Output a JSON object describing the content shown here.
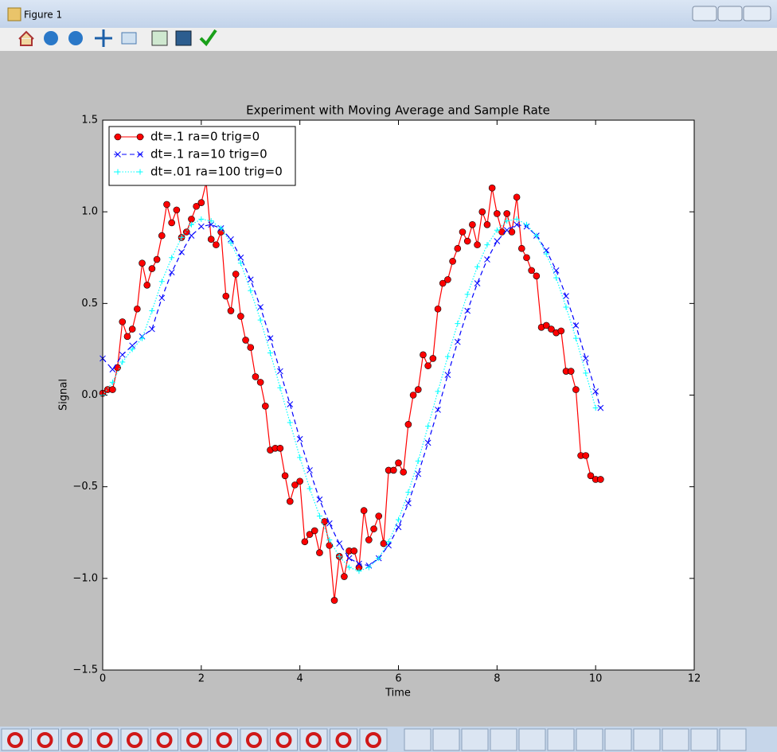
{
  "window": {
    "title": "Figure 1"
  },
  "chart_data": {
    "type": "line",
    "title": "Experiment with Moving Average and Sample Rate",
    "xlabel": "Time",
    "ylabel": "Signal",
    "xlim": [
      0,
      12
    ],
    "ylim": [
      -1.5,
      1.5
    ],
    "xticks": [
      0,
      2,
      4,
      6,
      8,
      10,
      12
    ],
    "yticks": [
      {
        "value": -1.5,
        "label": "−1.5"
      },
      {
        "value": -1,
        "label": "−1.0"
      },
      {
        "value": -0.5,
        "label": "−0.5"
      },
      {
        "value": 0,
        "label": "0.0"
      },
      0.5,
      {
        "value": 1,
        "label": "1.0"
      },
      1.5
    ],
    "grid": false,
    "legend": "upper left",
    "series": [
      {
        "name": "dt=.1 ra=0 trig=0",
        "color": "#ff0000",
        "marker": "o",
        "linestyle": "solid",
        "x": [
          0,
          0.1,
          0.2,
          0.3,
          0.4,
          0.5,
          0.6,
          0.7,
          0.8,
          0.9,
          1,
          1.1,
          1.2,
          1.3,
          1.4,
          1.5,
          1.6,
          1.7,
          1.8,
          1.9,
          2,
          2.1,
          2.2,
          2.3,
          2.4,
          2.5,
          2.6,
          2.7,
          2.8,
          2.9,
          3,
          3.1,
          3.2,
          3.3,
          3.4,
          3.5,
          3.6,
          3.7,
          3.8,
          3.9,
          4,
          4.1,
          4.2,
          4.3,
          4.4,
          4.5,
          4.6,
          4.7,
          4.8,
          4.9,
          5,
          5.1,
          5.2,
          5.3,
          5.4,
          5.5,
          5.6,
          5.7,
          5.8,
          5.9,
          6,
          6.1,
          6.2,
          6.3,
          6.4,
          6.5,
          6.6,
          6.7,
          6.8,
          6.9,
          7,
          7.1,
          7.2,
          7.3,
          7.4,
          7.5,
          7.6,
          7.7,
          7.8,
          7.9,
          8,
          8.1,
          8.2,
          8.3,
          8.4,
          8.5,
          8.6,
          8.7,
          8.8,
          8.9,
          9,
          9.1,
          9.2,
          9.3,
          9.4,
          9.5,
          9.6,
          9.7,
          9.8,
          9.9,
          10,
          10.1
        ],
        "values": [
          0.01,
          0.03,
          0.03,
          0.15,
          0.4,
          0.32,
          0.36,
          0.47,
          0.72,
          0.6,
          0.69,
          0.74,
          0.87,
          1.04,
          0.94,
          1.01,
          0.86,
          0.89,
          0.96,
          1.03,
          1.05,
          1.16,
          0.85,
          0.82,
          0.89,
          0.54,
          0.46,
          0.66,
          0.43,
          0.3,
          0.26,
          0.1,
          0.07,
          -0.06,
          -0.3,
          -0.29,
          -0.29,
          -0.44,
          -0.58,
          -0.49,
          -0.47,
          -0.8,
          -0.76,
          -0.74,
          -0.86,
          -0.69,
          -0.82,
          -1.12,
          -0.88,
          -0.99,
          -0.85,
          -0.85,
          -0.94,
          -0.63,
          -0.79,
          -0.73,
          -0.66,
          -0.81,
          -0.41,
          -0.41,
          -0.37,
          -0.42,
          -0.16,
          0,
          0.03,
          0.22,
          0.16,
          0.2,
          0.47,
          0.61,
          0.63,
          0.73,
          0.8,
          0.89,
          0.84,
          0.93,
          0.82,
          1,
          0.93,
          1.13,
          0.99,
          0.89,
          0.99,
          0.89,
          1.08,
          0.8,
          0.75,
          0.68,
          0.65,
          0.37,
          0.38,
          0.36,
          0.34,
          0.35,
          0.13,
          0.13,
          0.03,
          -0.33,
          -0.33,
          -0.44,
          -0.46,
          -0.46
        ]
      },
      {
        "name": "dt=.1 ra=10 trig=0",
        "color": "#0000ff",
        "marker": "x",
        "linestyle": "dashed",
        "x": [
          0,
          0.2,
          0.4,
          0.6,
          0.8,
          1,
          1.2,
          1.4,
          1.6,
          1.8,
          2,
          2.2,
          2.4,
          2.6,
          2.8,
          3,
          3.2,
          3.4,
          3.6,
          3.8,
          4,
          4.2,
          4.4,
          4.6,
          4.8,
          5,
          5.2,
          5.4,
          5.6,
          5.8,
          6,
          6.2,
          6.4,
          6.6,
          6.8,
          7,
          7.2,
          7.4,
          7.6,
          7.8,
          8,
          8.2,
          8.4,
          8.6,
          8.8,
          9,
          9.2,
          9.4,
          9.6,
          9.8,
          10,
          10.1
        ],
        "values": [
          0.2,
          0.14,
          0.22,
          0.27,
          0.32,
          0.36,
          0.53,
          0.67,
          0.78,
          0.87,
          0.92,
          0.93,
          0.91,
          0.85,
          0.75,
          0.63,
          0.48,
          0.31,
          0.13,
          -0.05,
          -0.24,
          -0.41,
          -0.57,
          -0.7,
          -0.81,
          -0.89,
          -0.92,
          -0.93,
          -0.89,
          -0.82,
          -0.72,
          -0.59,
          -0.43,
          -0.26,
          -0.08,
          0.11,
          0.29,
          0.46,
          0.61,
          0.74,
          0.84,
          0.9,
          0.93,
          0.92,
          0.87,
          0.79,
          0.68,
          0.54,
          0.38,
          0.2,
          0.02,
          -0.07
        ]
      },
      {
        "name": "dt=.01 ra=100 trig=0",
        "color": "#00ffff",
        "marker": "+",
        "linestyle": "dotted",
        "x": [
          0,
          0.2,
          0.4,
          0.6,
          0.8,
          1,
          1.2,
          1.4,
          1.6,
          1.8,
          2,
          2.2,
          2.4,
          2.6,
          2.8,
          3,
          3.2,
          3.4,
          3.6,
          3.8,
          4,
          4.2,
          4.4,
          4.6,
          4.8,
          5,
          5.2,
          5.4,
          5.6,
          5.8,
          6,
          6.2,
          6.4,
          6.6,
          6.8,
          7,
          7.2,
          7.4,
          7.6,
          7.8,
          8,
          8.2,
          8.4,
          8.6,
          8.8,
          9,
          9.2,
          9.4,
          9.6,
          9.8,
          10
        ],
        "values": [
          0,
          0.07,
          0.18,
          0.25,
          0.31,
          0.46,
          0.62,
          0.75,
          0.86,
          0.93,
          0.96,
          0.95,
          0.91,
          0.83,
          0.72,
          0.57,
          0.41,
          0.23,
          0.04,
          -0.15,
          -0.34,
          -0.51,
          -0.66,
          -0.79,
          -0.88,
          -0.94,
          -0.96,
          -0.94,
          -0.89,
          -0.8,
          -0.68,
          -0.53,
          -0.36,
          -0.17,
          0.02,
          0.21,
          0.39,
          0.55,
          0.7,
          0.82,
          0.9,
          0.95,
          0.96,
          0.93,
          0.87,
          0.77,
          0.64,
          0.48,
          0.31,
          0.12,
          -0.07
        ]
      }
    ]
  }
}
